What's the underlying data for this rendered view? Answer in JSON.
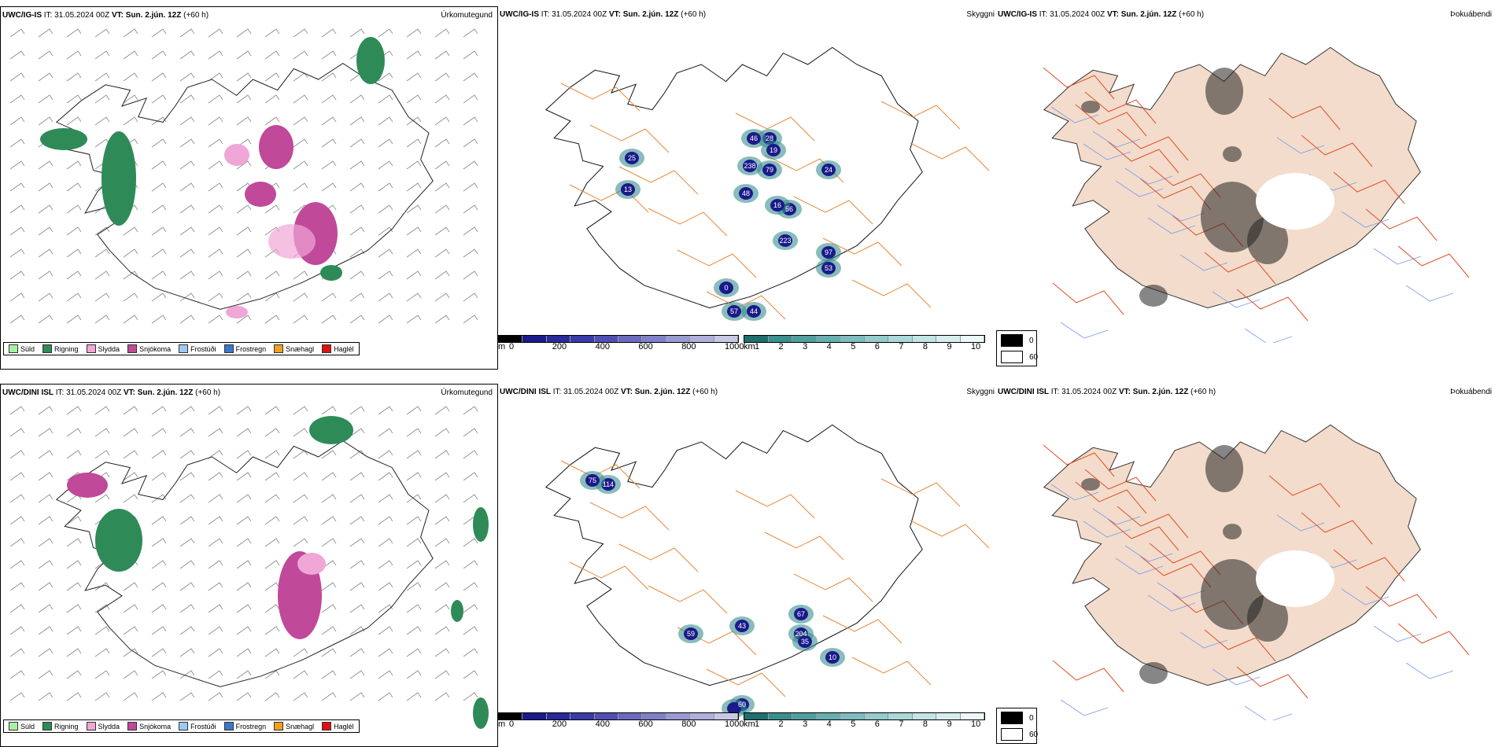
{
  "rows": [
    {
      "precip": {
        "model": "UWC/IG-IS",
        "it_label": "IT:",
        "it": "31.05.2024 00Z",
        "vt_label": "VT:",
        "vt": "Sun. 2.jún. 12Z",
        "lead": "(+60 h)",
        "name": "Úrkomutegund"
      },
      "vis": {
        "model": "UWC/IG-IS",
        "it_label": "IT:",
        "it": "31.05.2024 00Z",
        "vt_label": "VT:",
        "vt": "Sun. 2.jún. 12Z",
        "lead": "(+60 h)",
        "name": "Skyggni"
      },
      "fog": {
        "model": "UWC/IG-IS",
        "it_label": "IT:",
        "it": "31.05.2024 00Z",
        "vt_label": "VT:",
        "vt": "Sun. 2.jún. 12Z",
        "lead": "(+60 h)",
        "name": "Þokuábendi"
      },
      "vis_labels": [
        "48",
        "56",
        "16",
        "223",
        "97",
        "53",
        "24",
        "28",
        "19",
        "79",
        "238",
        "46",
        "25",
        "13",
        "0",
        "57",
        "44"
      ]
    },
    {
      "precip": {
        "model": "UWC/DINI ISL",
        "it_label": "IT:",
        "it": "31.05.2024 00Z",
        "vt_label": "VT:",
        "vt": "Sun. 2.jún. 12Z",
        "lead": "(+60 h)",
        "name": "Úrkomutegund"
      },
      "vis": {
        "model": "UWC/DINI ISL",
        "it_label": "IT:",
        "it": "31.05.2024 00Z",
        "vt_label": "VT:",
        "vt": "Sun. 2.jún. 12Z",
        "lead": "(+60 h)",
        "name": "Skyggni"
      },
      "fog": {
        "model": "UWC/DINI ISL",
        "it_label": "IT:",
        "it": "31.05.2024 00Z",
        "vt_label": "VT:",
        "vt": "Sun. 2.jún. 12Z",
        "lead": "(+60 h)",
        "name": "Þokuábendi"
      },
      "vis_labels": [
        "114",
        "75",
        "67",
        "204",
        "35",
        "10",
        "43",
        "59",
        "60"
      ]
    }
  ],
  "precip_legend": [
    {
      "label": "Súld",
      "color": "#a6f0a6"
    },
    {
      "label": "Rigning",
      "color": "#2e8b57"
    },
    {
      "label": "Slydda",
      "color": "#f0a6d6"
    },
    {
      "label": "Snjókoma",
      "color": "#c0499a"
    },
    {
      "label": "Frostúði",
      "color": "#9ec9f0"
    },
    {
      "label": "Frostregn",
      "color": "#3a78c9"
    },
    {
      "label": "Snæhagl",
      "color": "#f0a020"
    },
    {
      "label": "Haglél",
      "color": "#e01010"
    }
  ],
  "vis_cbar_m": {
    "unit": "m",
    "ticks": [
      "0",
      "200",
      "400",
      "600",
      "800",
      "1000"
    ]
  },
  "vis_cbar_km": {
    "unit": "km",
    "ticks": [
      "1",
      "2",
      "3",
      "4",
      "5",
      "6",
      "7",
      "8",
      "9",
      "10"
    ]
  },
  "fog_legend": [
    "0",
    "60"
  ],
  "colors": {
    "rain": "#2e8b57",
    "snow": "#c0499a",
    "sleet": "#f0a6d6",
    "vis_dark": "#1a1a8a",
    "vis_teal": "#3a8f8f",
    "roads": "#e8883a",
    "fog_land": "#f3dccb",
    "fog_roads": "#e0502a",
    "rivers": "#7a9cf0"
  }
}
